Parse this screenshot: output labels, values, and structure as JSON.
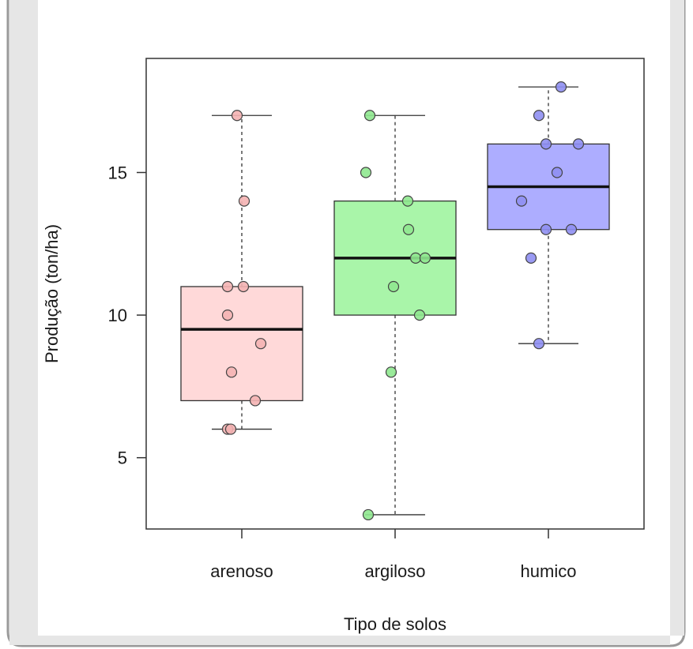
{
  "chart_data": {
    "type": "boxplot",
    "title": "",
    "xlabel": "Tipo de solos",
    "ylabel": "Produção (ton/ha)",
    "ylim": [
      2.5,
      19
    ],
    "yticks": [
      5,
      10,
      15
    ],
    "categories": [
      "arenoso",
      "argiloso",
      "humico"
    ],
    "groups": [
      {
        "category": "arenoso",
        "color": "#ffd9d9",
        "point_color": "#f4b3b3",
        "min": 6,
        "q1": 7,
        "median": 9.5,
        "q3": 11,
        "max": 17,
        "points": [
          17,
          14,
          11,
          11,
          10,
          9,
          8,
          7,
          6,
          6
        ]
      },
      {
        "category": "argiloso",
        "color": "#a9f5a9",
        "point_color": "#8fe88f",
        "min": 3,
        "q1": 10,
        "median": 12,
        "q3": 14,
        "max": 17,
        "points": [
          17,
          15,
          14,
          13,
          12,
          12,
          11,
          10,
          8,
          3
        ]
      },
      {
        "category": "humico",
        "color": "#adadff",
        "point_color": "#8f8ff2",
        "min": 9,
        "q1": 13,
        "median": 14.5,
        "q3": 16,
        "max": 18,
        "points": [
          18,
          17,
          16,
          16,
          15,
          14,
          13,
          13,
          12,
          9
        ]
      }
    ]
  }
}
